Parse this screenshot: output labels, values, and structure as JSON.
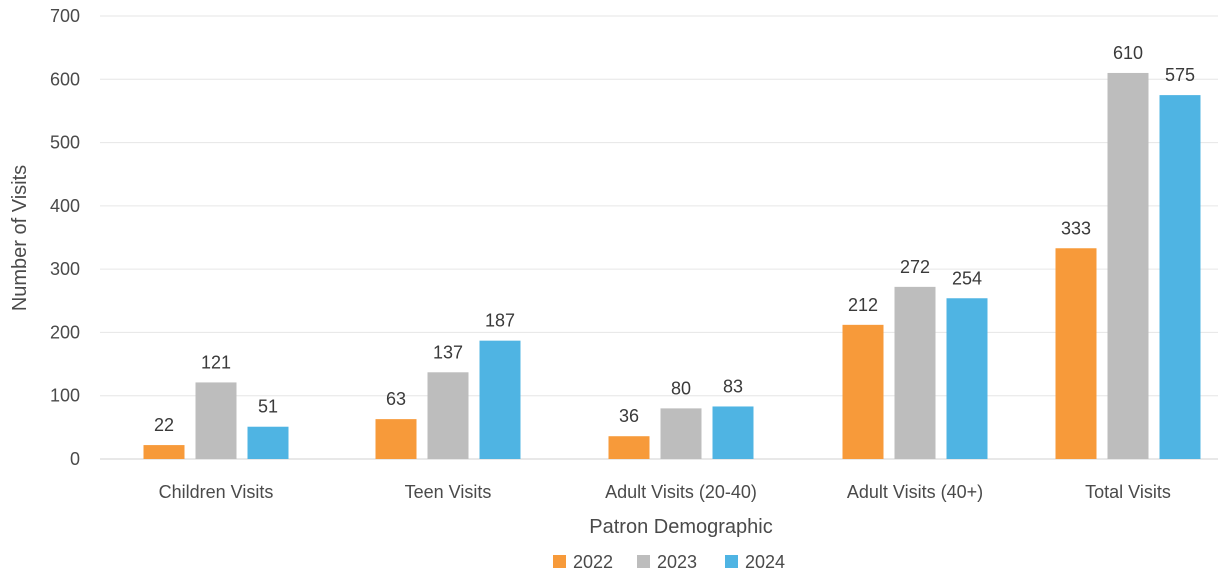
{
  "chart_data": {
    "type": "bar",
    "title": "",
    "xlabel": "Patron Demographic",
    "ylabel": "Number of Visits",
    "ylim": [
      0,
      700
    ],
    "yticks": [
      0,
      100,
      200,
      300,
      400,
      500,
      600,
      700
    ],
    "grid": true,
    "legend_position": "bottom",
    "categories": [
      "Children Visits",
      "Teen Visits",
      "Adult Visits (20-40)",
      "Adult Visits (40+)",
      "Total Visits"
    ],
    "series": [
      {
        "name": "2022",
        "color": "#F79A3A",
        "values": [
          22,
          63,
          36,
          212,
          333
        ]
      },
      {
        "name": "2023",
        "color": "#BDBDBD",
        "values": [
          121,
          137,
          80,
          272,
          610
        ]
      },
      {
        "name": "2024",
        "color": "#4FB4E3",
        "values": [
          51,
          187,
          83,
          254,
          575
        ]
      }
    ]
  }
}
